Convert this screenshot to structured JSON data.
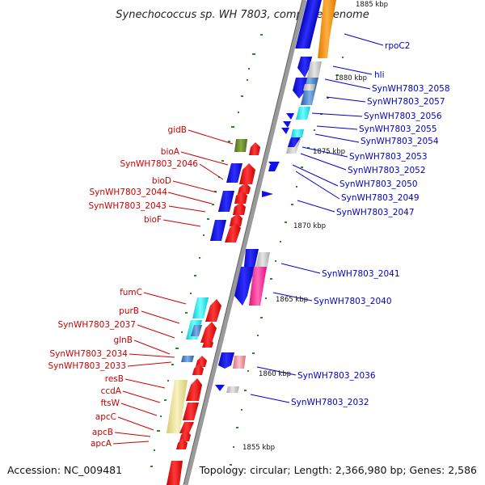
{
  "title": "Synechococcus sp. WH 7803, complete genome",
  "footer": {
    "accession": "Accession: NC_009481",
    "summary": "Topology: circular; Length: 2,366,980 bp; Genes: 2,586"
  },
  "ticks": [
    "1885 kbp",
    "1880 kbp",
    "1875 kbp",
    "1870 kbp",
    "1865 kbp",
    "1860 kbp",
    "1855 kbp"
  ],
  "labels_reverse_strand": [
    "gidB",
    "bioA",
    "SynWH7803_2046",
    "bioD",
    "SynWH7803_2044",
    "SynWH7803_2043",
    "bioF",
    "fumC",
    "purB",
    "SynWH7803_2037",
    "glnB",
    "SynWH7803_2034",
    "SynWH7803_2033",
    "resB",
    "ccdA",
    "ftsW",
    "apcC",
    "apcB",
    "apcA"
  ],
  "labels_forward_strand": [
    "rpoC2",
    "hli",
    "SynWH7803_2058",
    "SynWH7803_2057",
    "SynWH7803_2056",
    "SynWH7803_2055",
    "SynWH7803_2054",
    "SynWH7803_2053",
    "SynWH7803_2052",
    "SynWH7803_2050",
    "SynWH7803_2049",
    "SynWH7803_2047",
    "SynWH7803_2041",
    "SynWH7803_2040",
    "SynWH7803_2036",
    "SynWH7803_2032"
  ],
  "colors": {
    "reverse_label": "#cc0000",
    "forward_label": "#0000cc",
    "cds_red": "#ff2020",
    "cds_blue": "#1010ee",
    "orange": "#ff9a1a",
    "cyan": "#22e6f0",
    "gray": "#c8c8c8",
    "pink": "#ff2d9a",
    "olive": "#6f8f2a",
    "tan": "#ece49a",
    "steel": "#4f86c8",
    "rose": "#f39aa6",
    "backbone": "#9a9a9a",
    "dots": "#2a8a2a"
  }
}
